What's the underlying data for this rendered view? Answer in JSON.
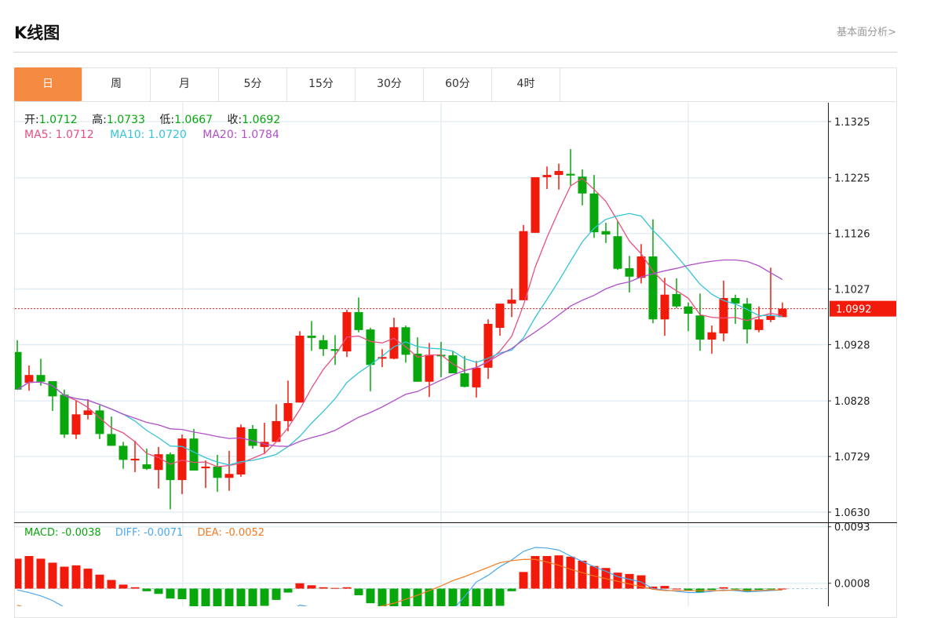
{
  "header": {
    "title": "K线图",
    "more_link": "基本面分析>"
  },
  "tabs": [
    {
      "label": "日",
      "active": true
    },
    {
      "label": "周"
    },
    {
      "label": "月"
    },
    {
      "label": "5分"
    },
    {
      "label": "15分"
    },
    {
      "label": "30分"
    },
    {
      "label": "60分"
    },
    {
      "label": "4时"
    }
  ],
  "colors": {
    "up": "#f21a0a",
    "down": "#08a70e",
    "ma5": "#e8507f",
    "ma10": "#34c4d8",
    "ma20": "#b150c8",
    "diff": "#4aa8f0",
    "dea": "#f57a20",
    "active_tab": "#f58a42"
  },
  "ohlc_legend": {
    "open_label": "开:",
    "open": "1.0712",
    "high_label": "高:",
    "high": "1.0733",
    "low_label": "低:",
    "low": "1.0667",
    "close_label": "收:",
    "close": "1.0692"
  },
  "ma_legend": {
    "ma5": "MA5: 1.0712",
    "ma10": "MA10: 1.0720",
    "ma20": "MA20: 1.0784"
  },
  "macd_legend": {
    "macd": "MACD: -0.0038",
    "diff": "DIFF: -0.0071",
    "dea": "DEA: -0.0052"
  },
  "chart_data": [
    {
      "type": "candlestick",
      "ylim": [
        1.063,
        1.1325
      ],
      "yticks": [
        "1.1325",
        "1.1225",
        "1.1126",
        "1.1027",
        "1.0928",
        "1.0828",
        "1.0729",
        "1.0630"
      ],
      "last_price": "1.0992",
      "ma_periods": [
        5,
        10,
        20
      ],
      "ohlc": [
        [
          1.0915,
          1.0936,
          1.0848,
          1.0848
        ],
        [
          1.086,
          1.0891,
          1.0846,
          1.0874
        ],
        [
          1.0874,
          1.0903,
          1.0855,
          1.0862
        ],
        [
          1.0863,
          1.0863,
          1.081,
          1.0836
        ],
        [
          1.0839,
          1.0848,
          1.0762,
          1.0768
        ],
        [
          1.0768,
          1.0829,
          1.076,
          1.0804
        ],
        [
          1.0803,
          1.0831,
          1.0795,
          1.0811
        ],
        [
          1.0811,
          1.082,
          1.076,
          1.0769
        ],
        [
          1.0769,
          1.08,
          1.0748,
          1.0748
        ],
        [
          1.0748,
          1.0755,
          1.0707,
          1.0723
        ],
        [
          1.0722,
          1.0757,
          1.0701,
          1.0725
        ],
        [
          1.0715,
          1.0743,
          1.0705,
          1.0707
        ],
        [
          1.0705,
          1.0746,
          1.0672,
          1.0733
        ],
        [
          1.0733,
          1.0736,
          1.0635,
          1.0687
        ],
        [
          1.0687,
          1.0768,
          1.0662,
          1.0761
        ],
        [
          1.0761,
          1.0778,
          1.0704,
          1.0704
        ],
        [
          1.0708,
          1.0722,
          1.0673,
          1.0711
        ],
        [
          1.0711,
          1.0732,
          1.0666,
          1.0691
        ],
        [
          1.0691,
          1.0739,
          1.0668,
          1.0698
        ],
        [
          1.0697,
          1.0786,
          1.0693,
          1.0781
        ],
        [
          1.0778,
          1.0785,
          1.0743,
          1.0748
        ],
        [
          1.0746,
          1.0789,
          1.0733,
          1.0755
        ],
        [
          1.0755,
          1.0822,
          1.0755,
          1.0792
        ],
        [
          1.0792,
          1.0864,
          1.0774,
          1.0824
        ],
        [
          1.0825,
          1.0952,
          1.0825,
          1.0944
        ],
        [
          1.0944,
          1.097,
          1.0917,
          1.094
        ],
        [
          1.0936,
          1.0945,
          1.0908,
          1.092
        ],
        [
          1.092,
          1.0945,
          1.0892,
          1.0917
        ],
        [
          1.0916,
          1.099,
          1.0906,
          1.0986
        ],
        [
          1.0986,
          1.1012,
          1.095,
          1.0954
        ],
        [
          1.0955,
          1.0958,
          1.0845,
          1.0892
        ],
        [
          1.0903,
          1.092,
          1.0888,
          1.0906
        ],
        [
          1.0903,
          1.0976,
          1.0902,
          1.0959
        ],
        [
          1.0959,
          1.0962,
          1.0896,
          1.091
        ],
        [
          1.0912,
          1.0941,
          1.0862,
          1.0862
        ],
        [
          1.0862,
          1.0931,
          1.0835,
          1.091
        ],
        [
          1.091,
          1.0933,
          1.087,
          1.0909
        ],
        [
          1.0909,
          1.0916,
          1.0877,
          1.0877
        ],
        [
          1.0877,
          1.0908,
          1.0852,
          1.0853
        ],
        [
          1.0852,
          1.0899,
          1.0834,
          1.0887
        ],
        [
          1.0887,
          1.0973,
          1.0867,
          1.0965
        ],
        [
          1.0958,
          1.1001,
          1.0944,
          1.1001
        ],
        [
          1.1001,
          1.1028,
          1.0977,
          1.1008
        ],
        [
          1.1007,
          1.1141,
          1.1007,
          1.113
        ],
        [
          1.1127,
          1.1226,
          1.1127,
          1.1226
        ],
        [
          1.1226,
          1.1245,
          1.1205,
          1.123
        ],
        [
          1.123,
          1.125,
          1.1204,
          1.1237
        ],
        [
          1.1232,
          1.1276,
          1.1211,
          1.1229
        ],
        [
          1.1227,
          1.124,
          1.1176,
          1.1197
        ],
        [
          1.1197,
          1.123,
          1.1118,
          1.1128
        ],
        [
          1.113,
          1.1145,
          1.1109,
          1.1124
        ],
        [
          1.1121,
          1.1148,
          1.1061,
          1.1063
        ],
        [
          1.1064,
          1.1086,
          1.1021,
          1.1049
        ],
        [
          1.1047,
          1.1107,
          1.1037,
          1.1085
        ],
        [
          1.1085,
          1.1151,
          1.0966,
          1.0973
        ],
        [
          1.0973,
          1.1047,
          1.0944,
          1.1017
        ],
        [
          1.1018,
          1.1046,
          1.0993,
          1.0996
        ],
        [
          1.0996,
          1.1003,
          1.0952,
          1.0983
        ],
        [
          1.098,
          1.1019,
          1.0917,
          1.0937
        ],
        [
          1.0937,
          1.0962,
          1.0912,
          1.095
        ],
        [
          1.0948,
          1.1042,
          1.0934,
          1.1011
        ],
        [
          1.1011,
          1.1017,
          1.0965,
          1.1001
        ],
        [
          1.1001,
          1.1011,
          1.093,
          1.0955
        ],
        [
          1.0954,
          1.0996,
          1.095,
          1.0973
        ],
        [
          1.0972,
          1.1065,
          1.0968,
          1.0979
        ],
        [
          1.0977,
          1.1003,
          1.0977,
          1.0992
        ]
      ]
    },
    {
      "type": "bar",
      "yticks": [
        "0.0093",
        "0.0008"
      ],
      "macd": [
        0.0045,
        0.0049,
        0.0045,
        0.0039,
        0.0033,
        0.0035,
        0.003,
        0.0021,
        0.0013,
        0.0006,
        0.0002,
        -0.0004,
        -0.0008,
        -0.0015,
        -0.0016,
        -0.0028,
        -0.0031,
        -0.0034,
        -0.0035,
        -0.0032,
        -0.0029,
        -0.0026,
        -0.0017,
        -0.0006,
        0.0008,
        0.0005,
        0.0002,
        0.0001,
        0.0002,
        -0.001,
        -0.0022,
        -0.0027,
        -0.0028,
        -0.003,
        -0.0033,
        -0.0034,
        -0.0035,
        -0.0036,
        -0.0036,
        -0.0033,
        -0.0029,
        -0.0026,
        -0.0004,
        0.0025,
        0.0049,
        0.0049,
        0.005,
        0.0048,
        0.0042,
        0.0034,
        0.0031,
        0.0024,
        0.0022,
        0.002,
        0.0003,
        0.0004,
        0.0,
        -0.0003,
        -0.0006,
        -0.0002,
        0.0002,
        -0.0001,
        -0.0005,
        -0.0002,
        -0.0001,
        0.0
      ],
      "diff": [
        -0.0002,
        -0.0006,
        -0.0011,
        -0.0018,
        -0.0028,
        -0.0033,
        -0.0037,
        -0.0042,
        -0.0046,
        -0.005,
        -0.0052,
        -0.0055,
        -0.0057,
        -0.0061,
        -0.006,
        -0.0061,
        -0.0062,
        -0.0063,
        -0.0063,
        -0.0058,
        -0.0055,
        -0.005,
        -0.0043,
        -0.0035,
        -0.0025,
        -0.0028,
        -0.003,
        -0.0032,
        -0.003,
        -0.0036,
        -0.0042,
        -0.0045,
        -0.0046,
        -0.0047,
        -0.005,
        -0.0049,
        -0.0046,
        -0.0032,
        -0.0012,
        0.001,
        0.002,
        0.0033,
        0.0043,
        0.0056,
        0.0062,
        0.0061,
        0.0058,
        0.0049,
        0.0041,
        0.0033,
        0.0026,
        0.0018,
        0.0014,
        0.001,
        0.0,
        -0.0002,
        -0.0004,
        -0.0006,
        -0.0006,
        -0.0004,
        -0.0002,
        -0.0003,
        -0.0005,
        -0.0004,
        -0.0003,
        -0.0002
      ],
      "dea": [
        -0.0025,
        -0.003,
        -0.0034,
        -0.0038,
        -0.0044,
        -0.005,
        -0.0052,
        -0.0053,
        -0.0053,
        -0.0053,
        -0.0053,
        -0.0053,
        -0.0053,
        -0.0054,
        -0.0055,
        -0.0056,
        -0.0057,
        -0.0058,
        -0.0059,
        -0.0059,
        -0.0058,
        -0.0056,
        -0.0054,
        -0.005,
        -0.0045,
        -0.0042,
        -0.004,
        -0.0038,
        -0.0036,
        -0.0034,
        -0.0031,
        -0.0026,
        -0.0022,
        -0.0016,
        -0.001,
        -0.0003,
        0.0004,
        0.0012,
        0.0018,
        0.0025,
        0.0032,
        0.0039,
        0.0042,
        0.0044,
        0.0044,
        0.004,
        0.0035,
        0.0029,
        0.0024,
        0.0019,
        0.0015,
        0.0011,
        0.0007,
        0.0003,
        -0.0001,
        -0.0003,
        -0.0003,
        -0.0003,
        -0.0003,
        -0.0003,
        -0.0003,
        -0.0002,
        -0.0003,
        -0.0003,
        -0.0002,
        -0.0002
      ]
    }
  ]
}
